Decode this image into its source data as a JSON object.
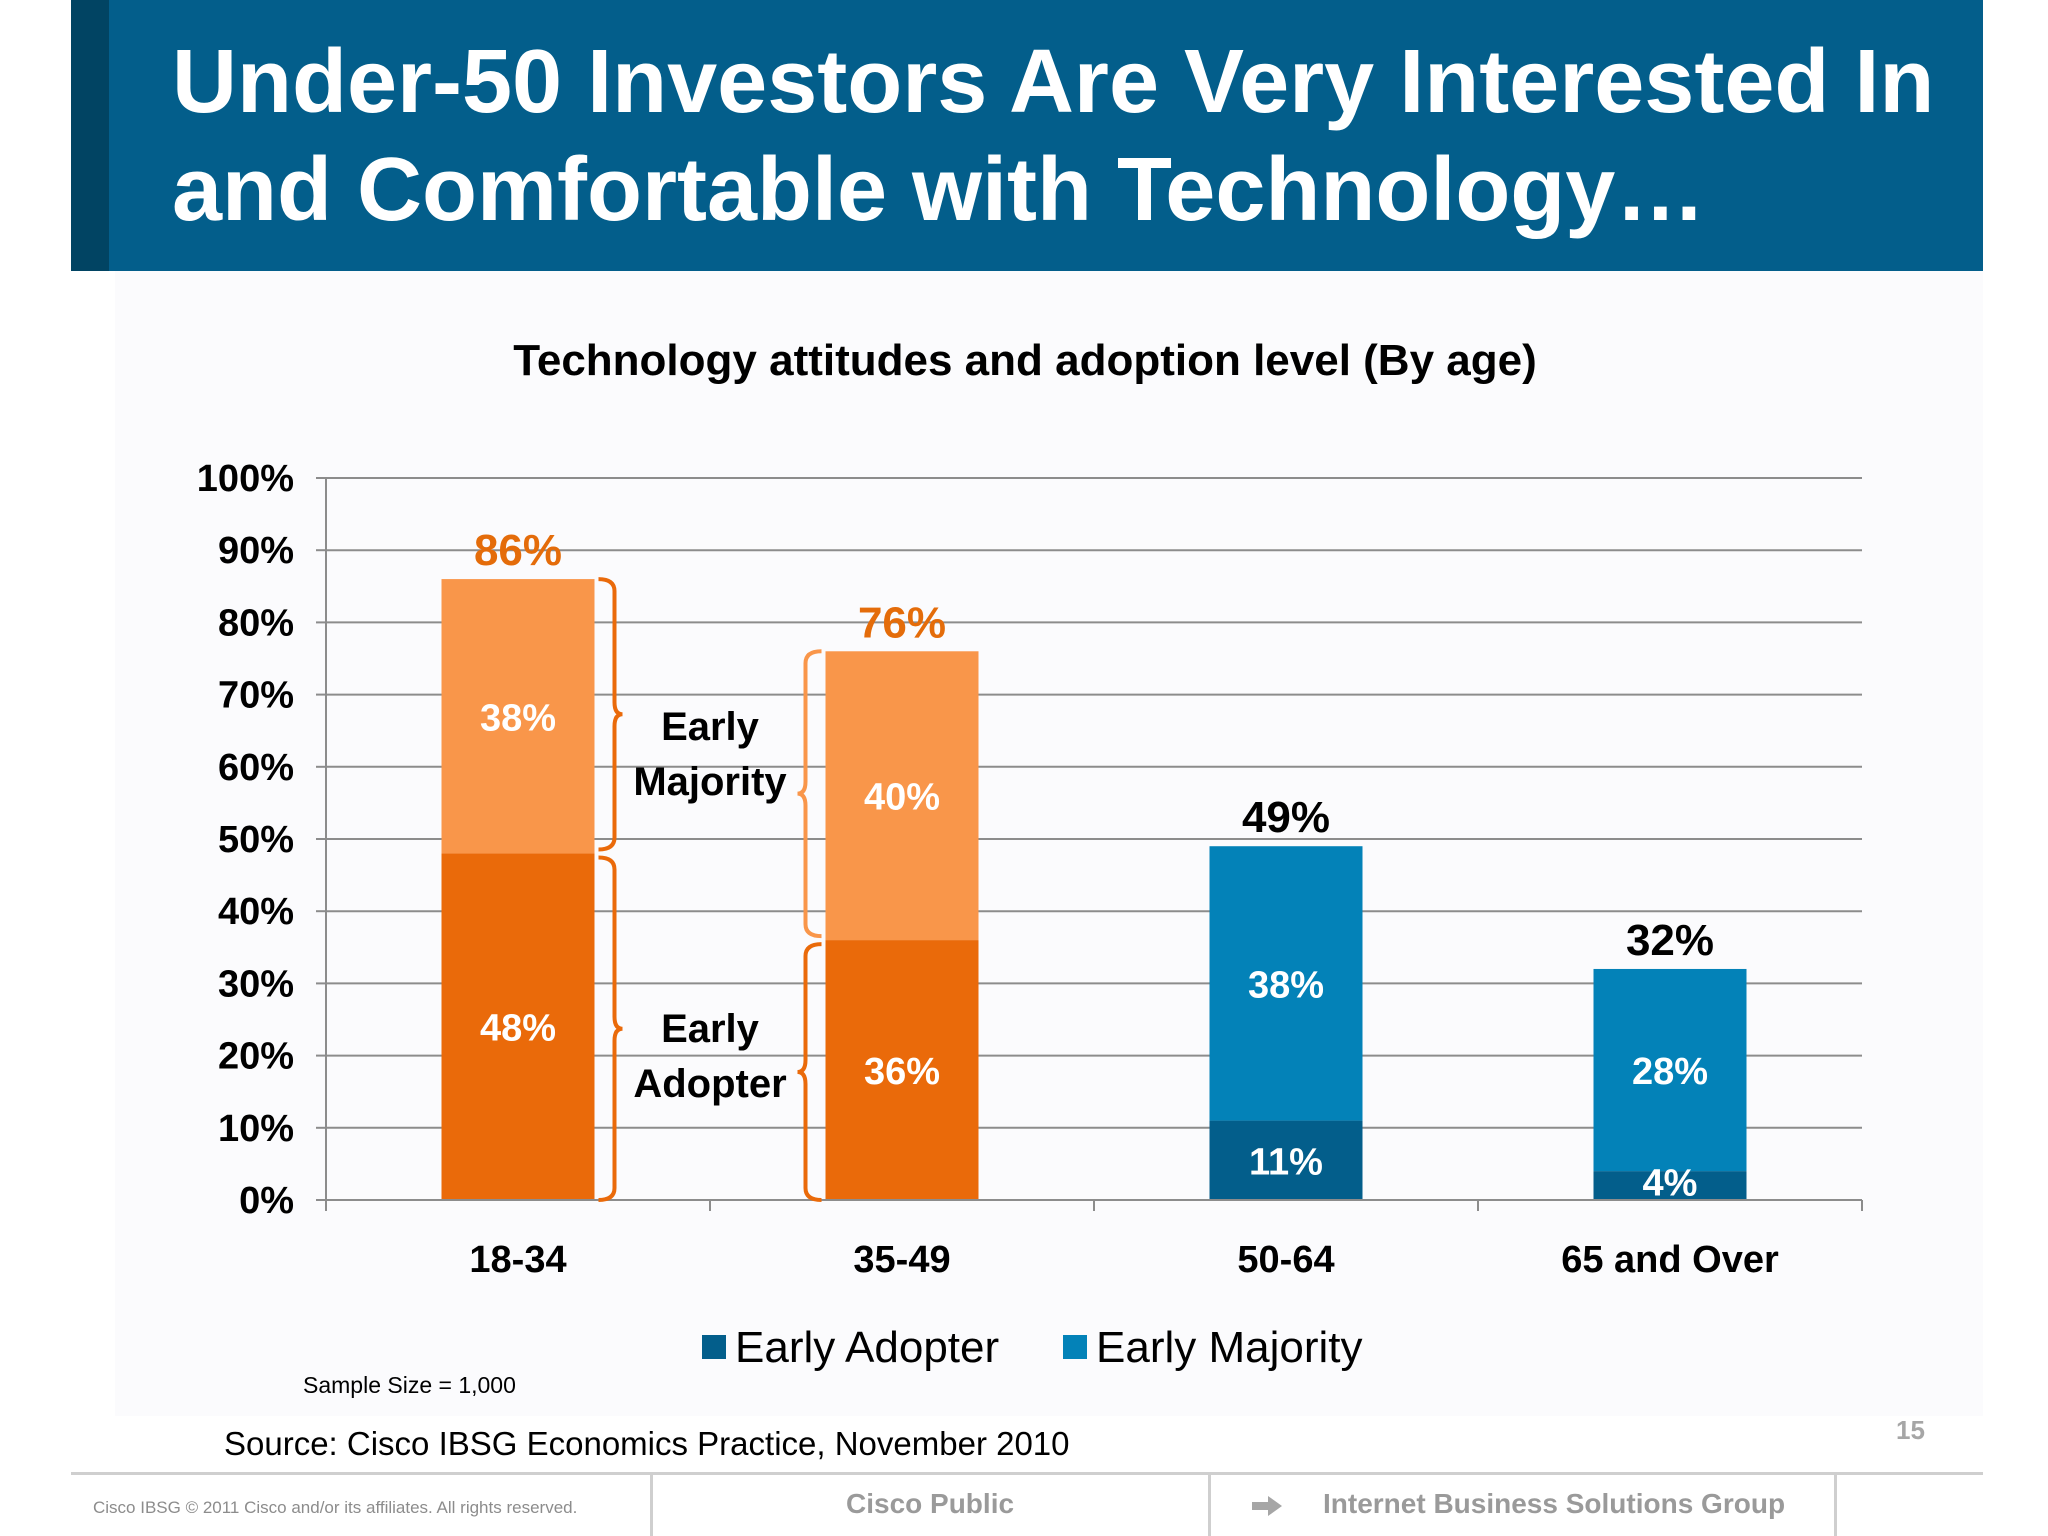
{
  "slide": {
    "title": "Under-50 Investors Are Very Interested In\nand Comfortable with Technology…",
    "sample_size": "Sample Size = 1,000",
    "source": "Source: Cisco IBSG Economics Practice, November 2010",
    "page_number": "15",
    "copyright": "Cisco IBSG © 2011 Cisco and/or its affiliates. All rights reserved.",
    "classification": "Cisco Public",
    "group": "Internet Business Solutions Group",
    "colors": {
      "header": "#035e8b",
      "orange_dark": "#ea6a0a",
      "orange_light": "#f9964a",
      "blue_dark": "#035e8b",
      "blue_light": "#0382b8",
      "total_orange": "#e46c0a"
    }
  },
  "chart_data": {
    "type": "bar",
    "stacked": true,
    "title": "Technology attitudes and adoption level (By age)",
    "xlabel": "",
    "ylabel": "",
    "categories": [
      "18-34",
      "35-49",
      "50-64",
      "65 and Over"
    ],
    "ylim": [
      0,
      100
    ],
    "yticks": [
      "0%",
      "10%",
      "20%",
      "30%",
      "40%",
      "50%",
      "60%",
      "70%",
      "80%",
      "90%",
      "100%"
    ],
    "grid": true,
    "series": [
      {
        "name": "Early Adopter",
        "values": [
          48,
          36,
          11,
          4
        ],
        "labels": [
          "48%",
          "36%",
          "11%",
          "4%"
        ]
      },
      {
        "name": "Early Majority",
        "values": [
          38,
          40,
          38,
          28
        ],
        "labels": [
          "38%",
          "40%",
          "38%",
          "28%"
        ]
      }
    ],
    "totals": [
      86,
      76,
      49,
      32
    ],
    "total_labels": [
      "86%",
      "76%",
      "49%",
      "32%"
    ],
    "legend": {
      "placement": "bottom",
      "entries": [
        "Early Adopter",
        "Early Majority"
      ]
    },
    "annotations": {
      "early_majority": [
        "Early",
        "Majority"
      ],
      "early_adopter": [
        "Early",
        "Adopter"
      ]
    }
  }
}
